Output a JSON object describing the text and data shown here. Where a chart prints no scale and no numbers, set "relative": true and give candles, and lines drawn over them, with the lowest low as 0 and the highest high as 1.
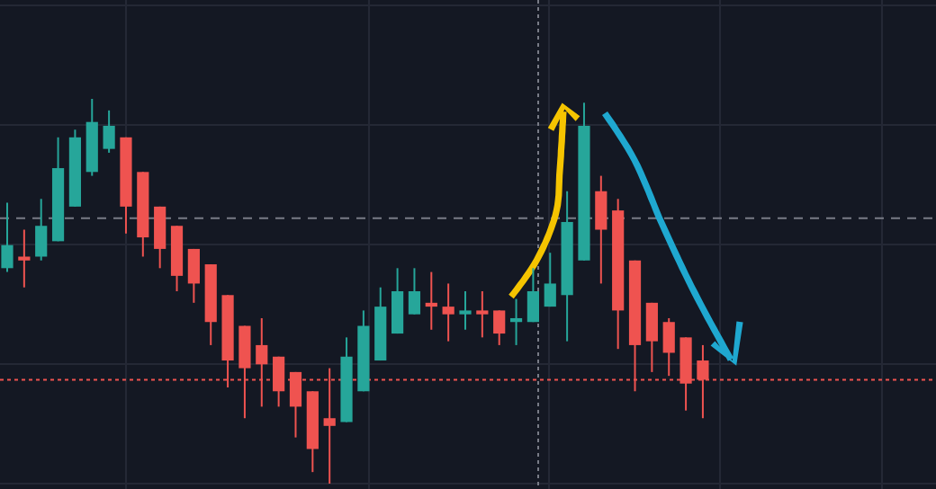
{
  "chart_data": {
    "type": "candlestick",
    "relative": true,
    "grid": true,
    "categories": [
      null,
      null,
      null,
      null,
      null,
      null,
      null,
      null,
      null,
      null,
      null,
      null,
      null,
      null,
      null,
      null,
      null,
      null,
      null,
      null,
      null,
      null,
      null,
      null,
      null,
      null,
      null,
      null,
      null,
      null,
      null,
      null,
      null,
      null,
      null,
      null,
      null,
      null,
      null,
      null,
      null,
      null,
      null,
      null,
      null,
      null,
      null,
      null,
      null,
      null,
      null,
      null,
      null,
      null,
      null
    ],
    "ohlc": [
      [
        0.56,
        0.73,
        0.55,
        0.62
      ],
      [
        0.59,
        0.66,
        0.51,
        0.58
      ],
      [
        0.59,
        0.74,
        0.58,
        0.67
      ],
      [
        0.63,
        0.9,
        0.63,
        0.82
      ],
      [
        0.72,
        0.92,
        0.72,
        0.9
      ],
      [
        0.81,
        1,
        0.8,
        0.94
      ],
      [
        0.87,
        0.97,
        0.86,
        0.93
      ],
      [
        0.9,
        0.9,
        0.65,
        0.72
      ],
      [
        0.81,
        0.81,
        0.59,
        0.64
      ],
      [
        0.72,
        0.72,
        0.56,
        0.61
      ],
      [
        0.67,
        0.67,
        0.5,
        0.54
      ],
      [
        0.61,
        0.61,
        0.47,
        0.52
      ],
      [
        0.57,
        0.57,
        0.36,
        0.42
      ],
      [
        0.49,
        0.49,
        0.25,
        0.32
      ],
      [
        0.41,
        0.41,
        0.17,
        0.3
      ],
      [
        0.36,
        0.43,
        0.2,
        0.31
      ],
      [
        0.33,
        0.33,
        0.2,
        0.24
      ],
      [
        0.29,
        0.29,
        0.12,
        0.2
      ],
      [
        0.24,
        0.24,
        0.03,
        0.09
      ],
      [
        0.17,
        0.3,
        0,
        0.15
      ],
      [
        0.16,
        0.38,
        0.16,
        0.33
      ],
      [
        0.24,
        0.45,
        0.24,
        0.41
      ],
      [
        0.32,
        0.51,
        0.32,
        0.46
      ],
      [
        0.39,
        0.56,
        0.39,
        0.5
      ],
      [
        0.44,
        0.56,
        0.44,
        0.5
      ],
      [
        0.47,
        0.55,
        0.4,
        0.46
      ],
      [
        0.46,
        0.52,
        0.37,
        0.44
      ],
      [
        0.44,
        0.5,
        0.4,
        0.45
      ],
      [
        0.45,
        0.5,
        0.38,
        0.44
      ],
      [
        0.45,
        0.45,
        0.36,
        0.39
      ],
      [
        0.42,
        0.48,
        0.36,
        0.43
      ],
      [
        0.42,
        0.56,
        0.42,
        0.5
      ],
      [
        0.46,
        0.6,
        0.46,
        0.52
      ],
      [
        0.49,
        0.76,
        0.37,
        0.68
      ],
      [
        0.58,
        0.99,
        0.58,
        0.93
      ],
      [
        0.76,
        0.8,
        0.52,
        0.66
      ],
      [
        0.71,
        0.74,
        0.35,
        0.45
      ],
      [
        0.58,
        0.58,
        0.24,
        0.36
      ],
      [
        0.47,
        0.47,
        0.29,
        0.37
      ],
      [
        0.42,
        0.43,
        0.28,
        0.34
      ],
      [
        0.38,
        0.38,
        0.19,
        0.26
      ],
      [
        0.32,
        0.36,
        0.17,
        0.27
      ],
      null,
      null,
      null,
      null,
      null,
      null,
      null,
      null,
      null,
      null,
      null,
      null,
      null
    ],
    "ref_lines": [
      {
        "axis": "y",
        "value": 0.69,
        "color": "#787b86",
        "line_style": "dashed"
      },
      {
        "axis": "y",
        "value": 0.27,
        "color": "#ef5350",
        "line_style": "dotted"
      }
    ]
  }
}
